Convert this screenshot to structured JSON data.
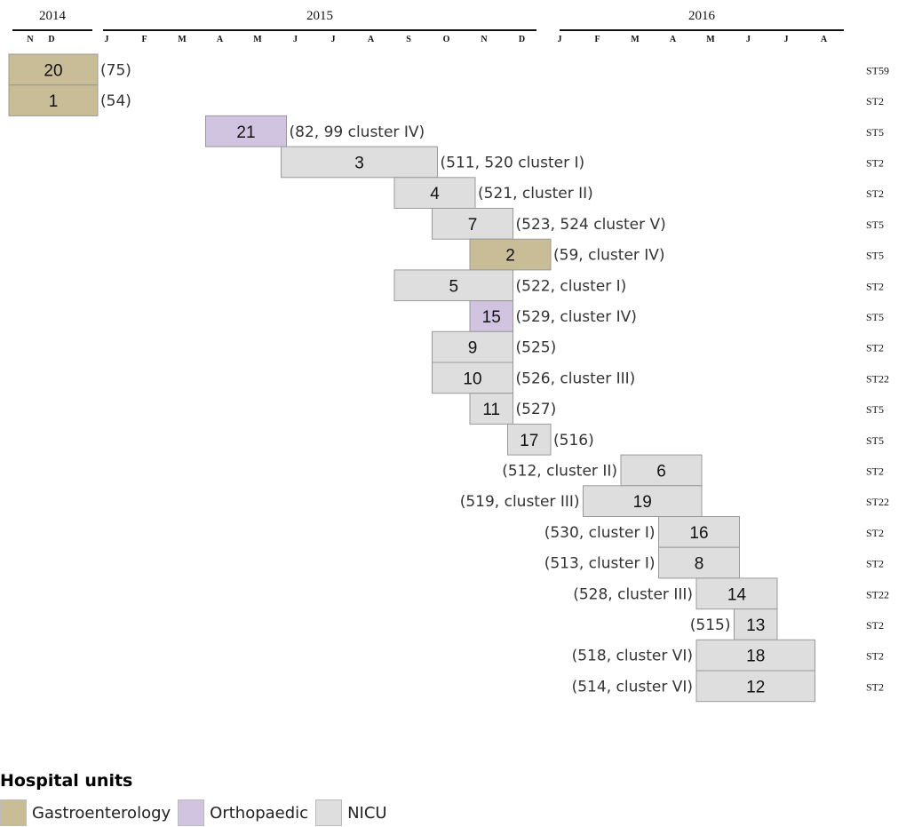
{
  "colors": {
    "Gastroenterology": "#c9bd98",
    "Orthopaedic": "#d1c4e0",
    "NICU": "#dedede"
  },
  "chart_data": {
    "type": "timeline",
    "title": "",
    "axis": {
      "years": [
        "2014",
        "2015",
        "2016"
      ],
      "months": [
        "N",
        "D",
        "J",
        "F",
        "M",
        "A",
        "M",
        "J",
        "J",
        "A",
        "S",
        "O",
        "N",
        "D",
        "J",
        "F",
        "M",
        "A",
        "M",
        "J",
        "J",
        "A"
      ]
    },
    "cases": [
      {
        "id": "20",
        "start": "2014-11",
        "end": "2015-01",
        "unit": "Gastroenterology",
        "annotation": "(75)",
        "annotation_side": "right",
        "st": "ST59"
      },
      {
        "id": "1",
        "start": "2014-11",
        "end": "2015-01",
        "unit": "Gastroenterology",
        "annotation": "(54)",
        "annotation_side": "right",
        "st": "ST2"
      },
      {
        "id": "21",
        "start": "2015-04",
        "end": "2015-06",
        "unit": "Orthopaedic",
        "annotation": "(82, 99 cluster IV)",
        "annotation_side": "right",
        "st": "ST5"
      },
      {
        "id": "3",
        "start": "2015-06",
        "end": "2015-10",
        "unit": "NICU",
        "annotation": "(511, 520 cluster I)",
        "annotation_side": "right",
        "st": "ST2"
      },
      {
        "id": "4",
        "start": "2015-09",
        "end": "2015-11",
        "unit": "NICU",
        "annotation": "(521, cluster II)",
        "annotation_side": "right",
        "st": "ST2"
      },
      {
        "id": "7",
        "start": "2015-10",
        "end": "2015-12",
        "unit": "NICU",
        "annotation": "(523, 524 cluster V)",
        "annotation_side": "right",
        "st": "ST5"
      },
      {
        "id": "2",
        "start": "2015-11",
        "end": "2016-01",
        "unit": "Gastroenterology",
        "annotation": "(59, cluster IV)",
        "annotation_side": "right",
        "st": "ST5"
      },
      {
        "id": "5",
        "start": "2015-09",
        "end": "2015-12",
        "unit": "NICU",
        "annotation": "(522, cluster I)",
        "annotation_side": "right",
        "st": "ST2"
      },
      {
        "id": "15",
        "start": "2015-11",
        "end": "2015-12",
        "unit": "Orthopaedic",
        "annotation": "(529, cluster IV)",
        "annotation_side": "right",
        "st": "ST5"
      },
      {
        "id": "9",
        "start": "2015-10",
        "end": "2015-12",
        "unit": "NICU",
        "annotation": "(525)",
        "annotation_side": "right",
        "st": "ST2"
      },
      {
        "id": "10",
        "start": "2015-10",
        "end": "2015-12",
        "unit": "NICU",
        "annotation": "(526, cluster III)",
        "annotation_side": "right",
        "st": "ST22"
      },
      {
        "id": "11",
        "start": "2015-11",
        "end": "2015-12",
        "unit": "NICU",
        "annotation": "(527)",
        "annotation_side": "right",
        "st": "ST5"
      },
      {
        "id": "17",
        "start": "2015-12",
        "end": "2016-01",
        "unit": "NICU",
        "annotation": "(516)",
        "annotation_side": "right",
        "st": "ST5"
      },
      {
        "id": "6",
        "start": "2016-03",
        "end": "2016-05",
        "unit": "NICU",
        "annotation": "(512, cluster II)",
        "annotation_side": "left",
        "st": "ST2"
      },
      {
        "id": "19",
        "start": "2016-02",
        "end": "2016-05",
        "unit": "NICU",
        "annotation": "(519, cluster III)",
        "annotation_side": "left",
        "st": "ST22"
      },
      {
        "id": "16",
        "start": "2016-04",
        "end": "2016-06",
        "unit": "NICU",
        "annotation": "(530, cluster I)",
        "annotation_side": "left",
        "st": "ST2"
      },
      {
        "id": "8",
        "start": "2016-04",
        "end": "2016-06",
        "unit": "NICU",
        "annotation": "(513, cluster I)",
        "annotation_side": "left",
        "st": "ST2"
      },
      {
        "id": "14",
        "start": "2016-05",
        "end": "2016-07",
        "unit": "NICU",
        "annotation": "(528, cluster III)",
        "annotation_side": "left",
        "st": "ST22"
      },
      {
        "id": "13",
        "start": "2016-06",
        "end": "2016-07",
        "unit": "NICU",
        "annotation": "(515)",
        "annotation_side": "left",
        "st": "ST2"
      },
      {
        "id": "18",
        "start": "2016-05",
        "end": "2016-08",
        "unit": "NICU",
        "annotation": "(518, cluster VI)",
        "annotation_side": "left",
        "st": "ST2"
      },
      {
        "id": "12",
        "start": "2016-05",
        "end": "2016-08",
        "unit": "NICU",
        "annotation": "(514, cluster VI)",
        "annotation_side": "left",
        "st": "ST2"
      }
    ]
  },
  "legend": {
    "title": "Hospital units",
    "items": [
      {
        "label": "Gastroenterology",
        "color": "#c9bd98"
      },
      {
        "label": "Orthopaedic",
        "color": "#d1c4e0"
      },
      {
        "label": "NICU",
        "color": "#dedede"
      }
    ]
  }
}
